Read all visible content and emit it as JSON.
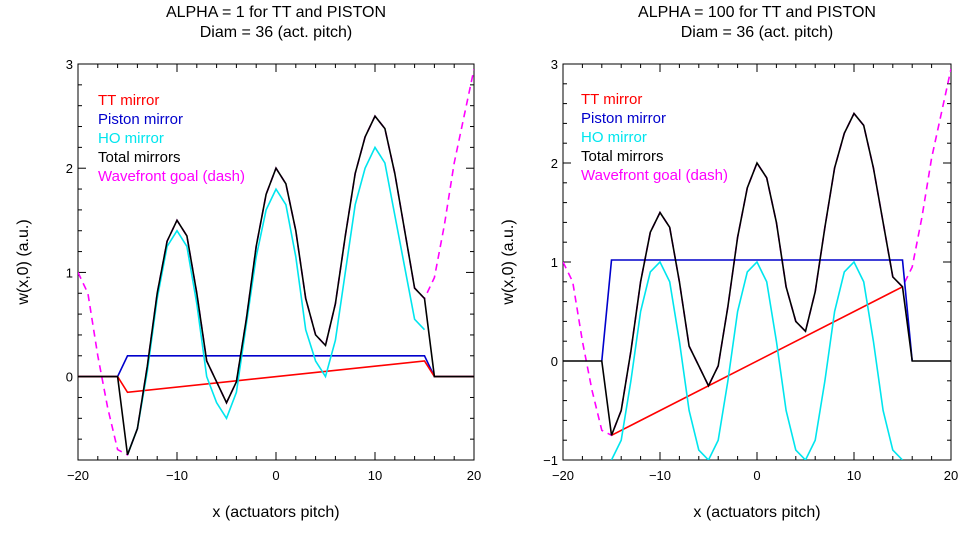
{
  "chart_data": [
    {
      "type": "line",
      "title": "ALPHA = 1 for TT and PISTON",
      "subtitle": "Diam = 36 (act. pitch)",
      "xlabel": "x (actuators pitch)",
      "ylabel": "w(x,0) (a.u.)",
      "xlim": [
        -20,
        20
      ],
      "ylim": [
        -0.8,
        3
      ],
      "xticks": [
        -20,
        -10,
        0,
        10,
        20
      ],
      "xtick_labels": [
        "−20",
        "−10",
        "0",
        "10",
        "20"
      ],
      "yticks": [
        0,
        1,
        2,
        3
      ],
      "ytick_labels": [
        "0",
        "1",
        "2",
        "3"
      ],
      "legend": [
        "TT mirror",
        "Piston mirror",
        "HO mirror",
        "Total mirrors",
        "Wavefront goal (dash)"
      ],
      "series": [
        {
          "name": "TT mirror",
          "color": "#ff0000",
          "x": [
            -20,
            -16,
            -15,
            15,
            16,
            20
          ],
          "y": [
            0,
            0,
            -0.15,
            0.15,
            0,
            0
          ]
        },
        {
          "name": "Piston mirror",
          "color": "#0000cc",
          "x": [
            -20,
            -16,
            -15,
            15,
            16,
            20
          ],
          "y": [
            0,
            0,
            0.2,
            0.2,
            0,
            0
          ]
        },
        {
          "name": "HO mirror",
          "color": "#00e5ee",
          "x": [
            -15,
            -14,
            -13,
            -12,
            -11,
            -10,
            -9,
            -8,
            -7,
            -6,
            -5,
            -4,
            -3,
            -2,
            -1,
            0,
            1,
            2,
            3,
            4,
            5,
            6,
            7,
            8,
            9,
            10,
            11,
            12,
            13,
            14,
            15
          ],
          "y": [
            -0.75,
            -0.5,
            0.05,
            0.75,
            1.25,
            1.4,
            1.25,
            0.7,
            0.0,
            -0.25,
            -0.4,
            -0.15,
            0.5,
            1.15,
            1.6,
            1.8,
            1.65,
            1.15,
            0.45,
            0.15,
            0.0,
            0.35,
            1.0,
            1.65,
            2.0,
            2.2,
            2.05,
            1.55,
            1.05,
            0.55,
            0.45
          ]
        },
        {
          "name": "Total mirrors",
          "color": "#000000",
          "x": [
            -20,
            -16,
            -15,
            -14,
            -13,
            -12,
            -11,
            -10,
            -9,
            -8,
            -7,
            -6,
            -5,
            -4,
            -3,
            -2,
            -1,
            0,
            1,
            2,
            3,
            4,
            5,
            6,
            7,
            8,
            9,
            10,
            11,
            12,
            13,
            14,
            15,
            16,
            20
          ],
          "y": [
            0,
            0,
            -0.75,
            -0.5,
            0.1,
            0.8,
            1.3,
            1.5,
            1.35,
            0.8,
            0.15,
            -0.05,
            -0.25,
            -0.05,
            0.55,
            1.25,
            1.75,
            2.0,
            1.85,
            1.4,
            0.75,
            0.4,
            0.3,
            0.7,
            1.35,
            1.95,
            2.3,
            2.5,
            2.38,
            1.95,
            1.4,
            0.85,
            0.75,
            0,
            0
          ]
        },
        {
          "name": "Wavefront goal (dash)",
          "color": "#ff00ff",
          "dashed": true,
          "x": [
            -20,
            -19,
            -18,
            -17,
            -16,
            -15,
            -14,
            -13,
            -12,
            -11,
            -10,
            -9,
            -8,
            -7,
            -6,
            -5,
            -4,
            -3,
            -2,
            -1,
            0,
            1,
            2,
            3,
            4,
            5,
            6,
            7,
            8,
            9,
            10,
            11,
            12,
            13,
            14,
            15,
            16,
            17,
            18,
            19,
            20
          ],
          "y": [
            1.0,
            0.8,
            0.2,
            -0.3,
            -0.7,
            -0.75,
            -0.5,
            0.1,
            0.8,
            1.3,
            1.5,
            1.35,
            0.8,
            0.15,
            -0.05,
            -0.25,
            -0.05,
            0.55,
            1.25,
            1.75,
            2.0,
            1.85,
            1.4,
            0.75,
            0.4,
            0.3,
            0.7,
            1.35,
            1.95,
            2.3,
            2.5,
            2.38,
            1.95,
            1.4,
            0.85,
            0.75,
            0.95,
            1.45,
            2.05,
            2.5,
            2.95
          ]
        }
      ]
    },
    {
      "type": "line",
      "title": "ALPHA = 100 for TT and PISTON",
      "subtitle": "Diam = 36 (act. pitch)",
      "xlabel": "x (actuators pitch)",
      "ylabel": "w(x,0) (a.u.)",
      "xlim": [
        -20,
        20
      ],
      "ylim": [
        -1,
        3
      ],
      "xticks": [
        -20,
        -10,
        0,
        10,
        20
      ],
      "xtick_labels": [
        "−20",
        "−10",
        "0",
        "10",
        "20"
      ],
      "yticks": [
        -1,
        0,
        1,
        2,
        3
      ],
      "ytick_labels": [
        "−1",
        "0",
        "1",
        "2",
        "3"
      ],
      "legend": [
        "TT mirror",
        "Piston mirror",
        "HO mirror",
        "Total mirrors",
        "Wavefront goal (dash)"
      ],
      "series": [
        {
          "name": "TT mirror",
          "color": "#ff0000",
          "x": [
            -15,
            15
          ],
          "y": [
            -0.75,
            0.75
          ]
        },
        {
          "name": "Piston mirror",
          "color": "#0000cc",
          "x": [
            -16,
            -15,
            15,
            16
          ],
          "y": [
            0,
            1.02,
            1.02,
            0
          ]
        },
        {
          "name": "HO mirror",
          "color": "#00e5ee",
          "x": [
            -15,
            -14,
            -13,
            -12,
            -11,
            -10,
            -9,
            -8,
            -7,
            -6,
            -5,
            -4,
            -3,
            -2,
            -1,
            0,
            1,
            2,
            3,
            4,
            5,
            6,
            7,
            8,
            9,
            10,
            11,
            12,
            13,
            14,
            15
          ],
          "y": [
            -1.0,
            -0.8,
            -0.2,
            0.5,
            0.9,
            1.0,
            0.8,
            0.2,
            -0.5,
            -0.9,
            -1.0,
            -0.8,
            -0.2,
            0.5,
            0.9,
            1.0,
            0.8,
            0.2,
            -0.5,
            -0.9,
            -1.0,
            -0.8,
            -0.2,
            0.5,
            0.9,
            1.0,
            0.8,
            0.2,
            -0.5,
            -0.9,
            -1.0
          ]
        },
        {
          "name": "Total mirrors",
          "color": "#000000",
          "x": [
            -20,
            -16,
            -15,
            -14,
            -13,
            -12,
            -11,
            -10,
            -9,
            -8,
            -7,
            -6,
            -5,
            -4,
            -3,
            -2,
            -1,
            0,
            1,
            2,
            3,
            4,
            5,
            6,
            7,
            8,
            9,
            10,
            11,
            12,
            13,
            14,
            15,
            16,
            20
          ],
          "y": [
            0,
            0,
            -0.75,
            -0.5,
            0.1,
            0.8,
            1.3,
            1.5,
            1.35,
            0.8,
            0.15,
            -0.05,
            -0.25,
            -0.05,
            0.55,
            1.25,
            1.75,
            2.0,
            1.85,
            1.4,
            0.75,
            0.4,
            0.3,
            0.7,
            1.35,
            1.95,
            2.3,
            2.5,
            2.38,
            1.95,
            1.4,
            0.85,
            0.75,
            0,
            0
          ]
        },
        {
          "name": "Wavefront goal (dash)",
          "color": "#ff00ff",
          "dashed": true,
          "x": [
            -20,
            -19,
            -18,
            -17,
            -16,
            -15,
            -14,
            -13,
            -12,
            -11,
            -10,
            -9,
            -8,
            -7,
            -6,
            -5,
            -4,
            -3,
            -2,
            -1,
            0,
            1,
            2,
            3,
            4,
            5,
            6,
            7,
            8,
            9,
            10,
            11,
            12,
            13,
            14,
            15,
            16,
            17,
            18,
            19,
            20
          ],
          "y": [
            1.0,
            0.8,
            0.2,
            -0.3,
            -0.7,
            -0.75,
            -0.5,
            0.1,
            0.8,
            1.3,
            1.5,
            1.35,
            0.8,
            0.15,
            -0.05,
            -0.25,
            -0.05,
            0.55,
            1.25,
            1.75,
            2.0,
            1.85,
            1.4,
            0.75,
            0.4,
            0.3,
            0.7,
            1.35,
            1.95,
            2.3,
            2.5,
            2.38,
            1.95,
            1.4,
            0.85,
            0.75,
            0.95,
            1.45,
            2.05,
            2.5,
            2.95
          ]
        }
      ]
    }
  ]
}
